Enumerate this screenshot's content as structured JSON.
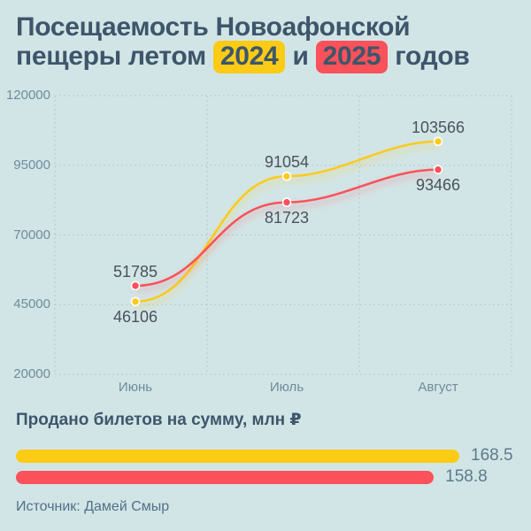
{
  "title": {
    "line1": "Посещаемость Новоафонской",
    "line2_prefix": "пещеры летом ",
    "badge_2024": "2024",
    "line2_middle": " и ",
    "badge_2025": "2025",
    "line2_suffix": " годов",
    "accent_2024": "#fccb15",
    "accent_2025": "#fa515a",
    "text_color": "#3d566b"
  },
  "chart_data": [
    {
      "type": "line",
      "x": [
        "Июнь",
        "Июль",
        "Август"
      ],
      "series": [
        {
          "name": "2024",
          "color": "#fbca1a",
          "values": [
            46106,
            91054,
            103566
          ],
          "label_side": [
            "below",
            "above",
            "above"
          ]
        },
        {
          "name": "2025",
          "color": "#fa515a",
          "values": [
            51785,
            81723,
            93466
          ],
          "label_side": [
            "above",
            "below",
            "below"
          ]
        }
      ],
      "ylim": [
        20000,
        120000
      ],
      "yticks": [
        20000,
        45000,
        70000,
        95000,
        120000
      ],
      "grid": "dashed",
      "legend": "none (series colors shown as title badges)"
    },
    {
      "type": "bar",
      "orientation": "horizontal",
      "title": "Продано билетов на сумму, млн ₽",
      "series": [
        {
          "name": "2024",
          "value": 168.5,
          "color": "#fccb15"
        },
        {
          "name": "2025",
          "value": 158.8,
          "color": "#fa515a"
        }
      ]
    }
  ],
  "source": {
    "text": "Источник: Дамей Смыр"
  }
}
